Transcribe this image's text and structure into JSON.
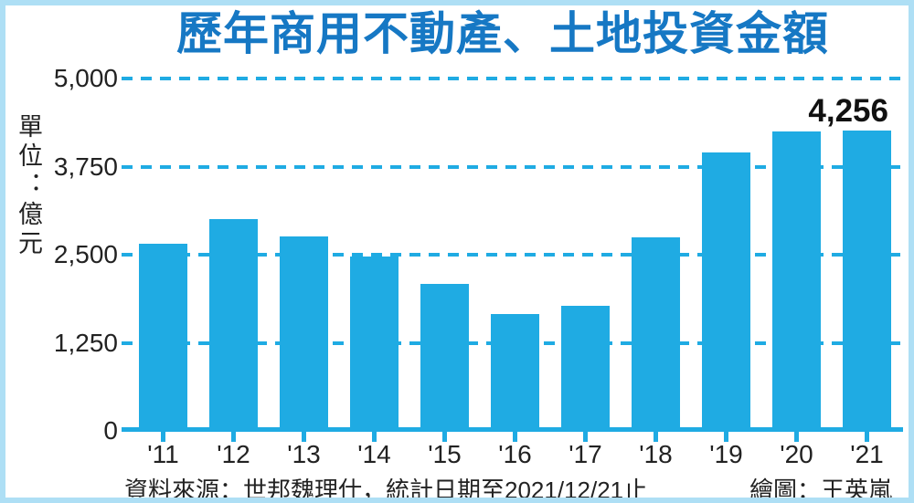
{
  "title": "歷年商用不動產、土地投資金額",
  "footer": {
    "source": "資料來源：世邦魏理仕，統計日期至2021/12/21止",
    "credit": "繪圖：王英嵐"
  },
  "colors": {
    "cyan": "#1fabe3",
    "title": "#1678c4",
    "border": "#aedff5",
    "text": "#222222"
  },
  "chart_data": {
    "type": "bar",
    "title": "歷年商用不動產、土地投資金額",
    "ylabel": "單位：億元",
    "xlabel": "",
    "categories": [
      "'11",
      "'12",
      "'13",
      "'14",
      "'15",
      "'16",
      "'17",
      "'18",
      "'19",
      "'20",
      "'21"
    ],
    "values": [
      2650,
      3000,
      2760,
      2480,
      2090,
      1660,
      1780,
      2750,
      3950,
      4250,
      4256
    ],
    "ylim": [
      0,
      5000
    ],
    "yticks": [
      {
        "value": 0,
        "label": "0"
      },
      {
        "value": 1250,
        "label": "1,250"
      },
      {
        "value": 2500,
        "label": "2,500"
      },
      {
        "value": 3750,
        "label": "3,750"
      },
      {
        "value": 5000,
        "label": "5,000"
      }
    ],
    "grid": "horizontal-dashed",
    "legend": "none",
    "data_labels": [
      {
        "index": 10,
        "text": "4,256"
      }
    ]
  }
}
